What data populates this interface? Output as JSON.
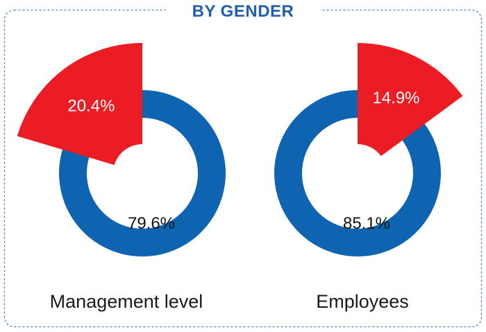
{
  "title": "BY GENDER",
  "colors": {
    "title": "#1f5fae",
    "border": "#4a7fc1",
    "ring": "#0f64b2",
    "highlight": "#ec1c24",
    "label_on_red": "#ffffff",
    "label_on_white": "#111111"
  },
  "chart_data": [
    {
      "type": "pie",
      "title": "Management level",
      "slices": [
        {
          "label": "20.4%",
          "value": 20.4,
          "style": "exploded-highlight"
        },
        {
          "label": "79.6%",
          "value": 79.6,
          "style": "ring"
        }
      ]
    },
    {
      "type": "pie",
      "title": "Employees",
      "slices": [
        {
          "label": "14.9%",
          "value": 14.9,
          "style": "exploded-highlight"
        },
        {
          "label": "85.1%",
          "value": 85.1,
          "style": "ring"
        }
      ]
    }
  ]
}
